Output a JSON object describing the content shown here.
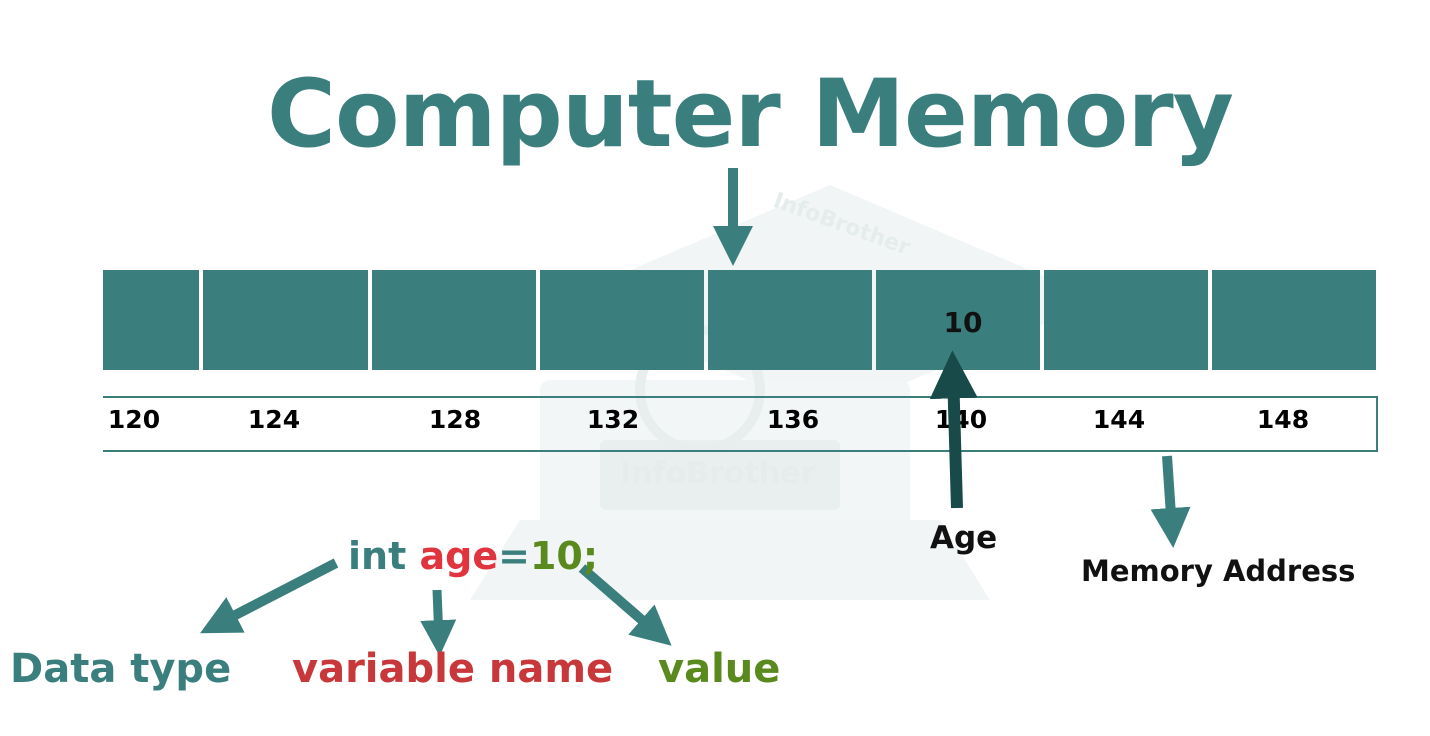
{
  "title": "Computer Memory",
  "watermark": "InfoBrother",
  "colors": {
    "teal": "#3a7f7d",
    "red": "#e0353f",
    "green": "#5a8a1e",
    "black": "#111111"
  },
  "memory": {
    "stored_value": "10",
    "addresses": [
      "120",
      "124",
      "128",
      "132",
      "136",
      "140",
      "144",
      "148"
    ]
  },
  "code": {
    "type": "int",
    "name": "age",
    "equals": "=",
    "value": "10",
    "semicolon": ";"
  },
  "labels": {
    "data_type": "Data type",
    "variable_name": "variable name",
    "value": "value",
    "age": "Age",
    "memory_address": "Memory Address"
  }
}
